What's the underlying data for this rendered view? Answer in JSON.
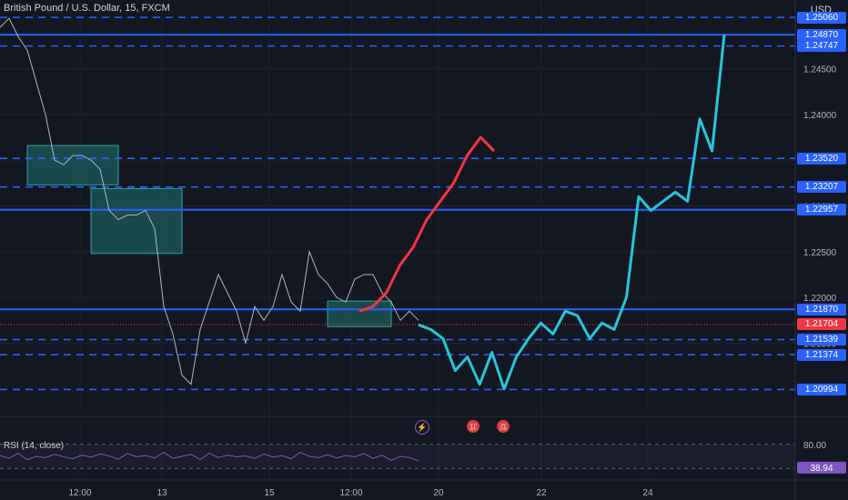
{
  "header": {
    "symbol_title": "British Pound / U.S. Dollar, 15, FXCM",
    "currency": "USD"
  },
  "indicator": {
    "label": "RSI (14, close)",
    "current_value": "38.94",
    "level_label": "80.00",
    "color": "#7e57c2"
  },
  "events": [
    {
      "icon": "lightning-icon",
      "glyph": "⚡"
    },
    {
      "icon": "us-flag-icon",
      "glyph": "🇺"
    },
    {
      "icon": "uk-flag-icon",
      "glyph": "🇬"
    }
  ],
  "chart_data": {
    "type": "line",
    "instrument": "GBP/USD",
    "timeframe": "15",
    "x_ticks": [
      "12:00",
      "13",
      "15",
      "12:00",
      "20",
      "22",
      "24"
    ],
    "y_ticks": [
      1.245,
      1.24,
      1.235,
      1.23,
      1.225,
      1.22,
      1.215
    ],
    "y_tick_labels": [
      "1.24500",
      "1.24000",
      "1.23500",
      "1.23000",
      "1.22500",
      "1.22000",
      "1.21500"
    ],
    "ylim": [
      1.207,
      1.2525
    ],
    "current_price": "1.21704",
    "levels": [
      {
        "label": "1.25060",
        "value": 1.2506,
        "style": "dashed"
      },
      {
        "label": "1.24870",
        "value": 1.2487,
        "style": "solid"
      },
      {
        "label": "1.24747",
        "value": 1.24747,
        "style": "dashed"
      },
      {
        "label": "1.23520",
        "value": 1.2352,
        "style": "dashed"
      },
      {
        "label": "1.23207",
        "value": 1.23207,
        "style": "dashed"
      },
      {
        "label": "1.22957",
        "value": 1.22957,
        "style": "solid"
      },
      {
        "label": "1.21870",
        "value": 1.2187,
        "style": "solid"
      },
      {
        "label": "1.21539",
        "value": 1.21539,
        "style": "dashed"
      },
      {
        "label": "1.21374",
        "value": 1.21374,
        "style": "dashed"
      },
      {
        "label": "1.20994",
        "value": 1.20994,
        "style": "dashed"
      }
    ],
    "series": [
      {
        "kind": "price",
        "values": [
          1.2495,
          1.2505,
          1.2485,
          1.247,
          1.2435,
          1.24,
          1.235,
          1.2345,
          1.2355,
          1.2355,
          1.235,
          1.234,
          1.2295,
          1.2285,
          1.229,
          1.229,
          1.2295,
          1.2275,
          1.219,
          1.216,
          1.2115,
          1.2105,
          1.2165,
          1.2195,
          1.2225,
          1.2205,
          1.2185,
          1.215,
          1.219,
          1.2175,
          1.219,
          1.2225,
          1.2195,
          1.2185,
          1.225,
          1.2225,
          1.2215,
          1.22,
          1.2195,
          1.222,
          1.2225,
          1.2225,
          1.2205,
          1.2195,
          1.2175,
          1.2185,
          1.2175
        ]
      },
      {
        "kind": "projection-up",
        "color": "#f23645",
        "values": [
          1.2185,
          1.219,
          1.2205,
          1.2235,
          1.2255,
          1.2285,
          1.2305,
          1.2325,
          1.2355,
          1.2375,
          1.236
        ]
      },
      {
        "kind": "projection-main",
        "color": "#26c6da",
        "values": [
          1.217,
          1.2165,
          1.2155,
          1.212,
          1.2135,
          1.2105,
          1.214,
          1.21,
          1.2135,
          1.2155,
          1.2172,
          1.216,
          1.2185,
          1.218,
          1.2155,
          1.2172,
          1.2165,
          1.22,
          1.231,
          1.2295,
          1.2305,
          1.2315,
          1.2305,
          1.2395,
          1.236,
          1.2487
        ]
      }
    ],
    "zones": [
      {
        "x": [
          0,
          10
        ],
        "y": [
          1.2323,
          1.2366
        ]
      },
      {
        "x": [
          10,
          20
        ],
        "y": [
          1.2248,
          1.2319
        ]
      },
      {
        "x": [
          36,
          43
        ],
        "y": [
          1.2168,
          1.2196
        ]
      }
    ],
    "rsi": {
      "values": [
        52,
        45,
        58,
        42,
        50,
        47,
        55,
        49,
        44,
        53,
        48,
        56,
        51,
        43,
        57,
        49,
        52,
        46,
        60,
        45,
        50,
        55,
        42,
        58,
        47,
        53,
        49,
        51,
        45,
        56,
        48,
        52,
        44,
        60,
        50,
        47,
        54,
        46,
        52,
        49,
        57,
        45,
        53,
        40,
        50,
        47,
        39
      ],
      "levels": [
        80,
        20
      ],
      "ylim": [
        0,
        100
      ]
    },
    "grid": true
  }
}
